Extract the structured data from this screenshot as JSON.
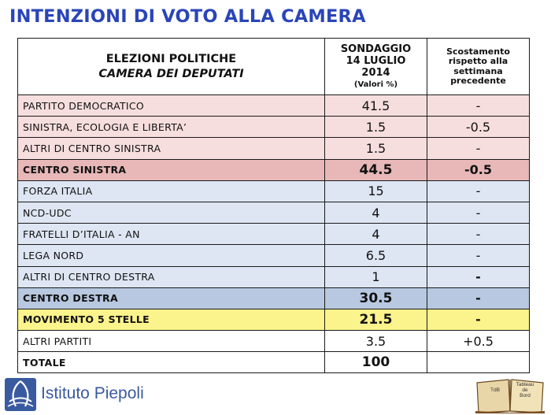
{
  "title": "INTENZIONI DI VOTO ALLA CAMERA",
  "header": {
    "col1_line1": "ELEZIONI POLITICHE",
    "col1_line2": "CAMERA DEI DEPUTATI",
    "col2_line1": "SONDAGGIO",
    "col2_line2": "14 LUGLIO",
    "col2_line3": "2014",
    "col2_line4": "(Valori %)",
    "col3_line1": "Scostamento",
    "col3_line2": "rispetto alla",
    "col3_line3": "settimana",
    "col3_line4": "precedente"
  },
  "chart_data": {
    "type": "table",
    "title": "INTENZIONI DI VOTO ALLA CAMERA",
    "columns": [
      "ELEZIONI POLITICHE CAMERA DEI DEPUTATI",
      "SONDAGGIO 14 LUGLIO 2014 (Valori %)",
      "Scostamento rispetto alla settimana precedente"
    ],
    "rows": [
      {
        "party": "PARTITO DEMOCRATICO",
        "value": "41.5",
        "change": "-"
      },
      {
        "party": "SINISTRA, ECOLOGIA E LIBERTA’",
        "value": "1.5",
        "change": "-0.5"
      },
      {
        "party": "ALTRI DI CENTRO SINISTRA",
        "value": "1.5",
        "change": "-"
      },
      {
        "party": "CENTRO SINISTRA",
        "value": "44.5",
        "change": "-0.5"
      },
      {
        "party": "FORZA ITALIA",
        "value": "15",
        "change": "-"
      },
      {
        "party": "NCD-UDC",
        "value": "4",
        "change": "-"
      },
      {
        "party": "FRATELLI D’ITALIA - AN",
        "value": "4",
        "change": "-"
      },
      {
        "party": "LEGA NORD",
        "value": "6.5",
        "change": "-"
      },
      {
        "party": "ALTRI DI CENTRO DESTRA",
        "value": "1",
        "change": "-"
      },
      {
        "party": "CENTRO DESTRA",
        "value": "30.5",
        "change": "-"
      },
      {
        "party": "MOVIMENTO 5 STELLE",
        "value": "21.5",
        "change": "-"
      },
      {
        "party": "ALTRI PARTITI",
        "value": "3.5",
        "change": "+0.5"
      },
      {
        "party": "TOTALE",
        "value": "100",
        "change": ""
      }
    ]
  },
  "footer": {
    "logo_text": "Istituto Piepoli",
    "book_line1": "TdB",
    "book_line2": "Tableau",
    "book_line3": "de",
    "book_line4": "Bord"
  },
  "colors": {
    "title": "#2a45b8",
    "centre_left_row": "#f7dede",
    "centre_left_total": "#e8b8b8",
    "centre_right_row": "#dde6f2",
    "centre_right_total": "#b8c8e0",
    "m5s_row": "#fbf38c"
  },
  "icons": {
    "logo": "piepoli-logo-icon",
    "book": "book-icon"
  }
}
